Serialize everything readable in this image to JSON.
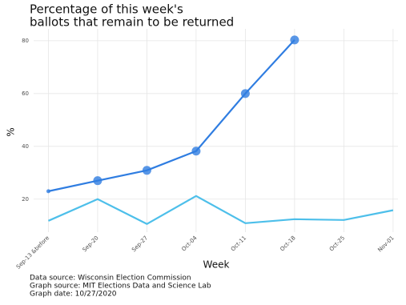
{
  "chart_data": {
    "type": "line",
    "title": [
      "Percentage of this week's",
      "ballots that remain to be returned"
    ],
    "x_label": "Week",
    "y_label": "%",
    "caption": [
      "Data source: Wisconsin Election Commission",
      "Graph source: MIT Elections Data and Science Lab",
      "Graph date: 10/27/2020"
    ],
    "categories": [
      "Sep-13 &before",
      "Sep-20",
      "Sep-27",
      "Oct-04",
      "Oct-11",
      "Oct-18",
      "Oct-25",
      "Nov-01"
    ],
    "series": [
      {
        "color": "#2f7de1",
        "markers": true,
        "values": [
          23.0,
          27.0,
          30.9,
          38.2,
          60.0,
          80.3,
          null,
          null
        ]
      },
      {
        "color": "#4dbfea",
        "markers": false,
        "values": [
          11.8,
          20.0,
          10.6,
          21.2,
          10.9,
          12.4,
          12.1,
          15.8
        ]
      }
    ],
    "ylim": [
      7.5,
      84.5
    ],
    "yticks": [
      20,
      40,
      60,
      80
    ],
    "grid": true
  }
}
